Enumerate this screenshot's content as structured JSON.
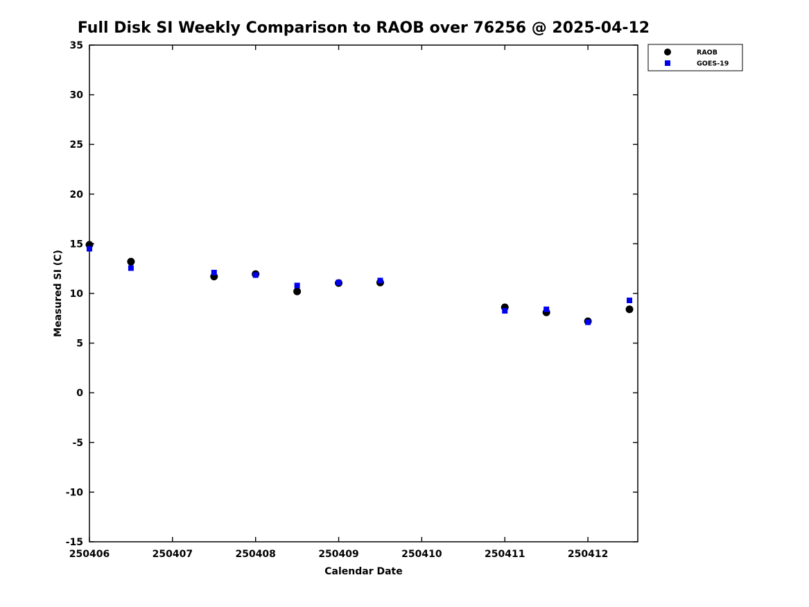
{
  "title": "Full Disk SI Weekly Comparison to RAOB over 76256 @ 2025-04-12",
  "colors": {
    "raob": "#000000",
    "goes19": "#0000ee",
    "axis": "#000000",
    "background": "#ffffff"
  },
  "chart_data": {
    "type": "scatter",
    "title": "Full Disk SI Weekly Comparison to RAOB over 76256 @ 2025-04-12",
    "xlabel": "Calendar Date",
    "ylabel": "Measured SI (C)",
    "x_tick_labels": [
      "250406",
      "250407",
      "250408",
      "250409",
      "250410",
      "250411",
      "250412"
    ],
    "y_ticks": [
      -15,
      -10,
      -5,
      0,
      5,
      10,
      15,
      20,
      25,
      30,
      35
    ],
    "ylim": [
      -15,
      35
    ],
    "xlim_days": [
      0,
      6.6
    ],
    "grid": false,
    "legend_position": "top-right",
    "x_days": [
      0,
      0.5,
      1.5,
      2,
      2.5,
      3,
      3.5,
      5,
      5.5,
      6,
      6.5
    ],
    "x_dates": [
      "250406",
      "250406.5",
      "250407.5",
      "250408",
      "250408.5",
      "250409",
      "250409.5",
      "250411",
      "250411.5",
      "250412",
      "250412.5"
    ],
    "series": [
      {
        "name": "RAOB",
        "marker": "circle",
        "color": "#000000",
        "values": [
          14.9,
          13.2,
          11.7,
          11.95,
          10.2,
          11.05,
          11.1,
          8.6,
          8.1,
          7.2,
          8.4
        ]
      },
      {
        "name": "GOES-19",
        "marker": "square",
        "color": "#0000ee",
        "values": [
          14.5,
          12.55,
          12.1,
          11.85,
          10.8,
          11.1,
          11.3,
          8.25,
          8.4,
          7.1,
          9.3
        ]
      }
    ]
  }
}
